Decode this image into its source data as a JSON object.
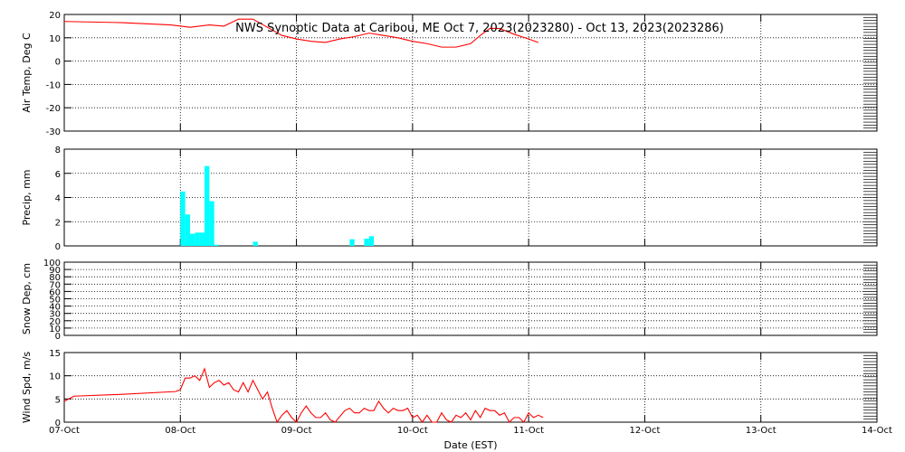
{
  "chart_data": {
    "title": "NWS Synoptic Data at Caribou, ME   Oct  7, 2023(2023280) - Oct 13, 2023(2023286)",
    "xlabel": "Date (EST)",
    "x_range": [
      "2023-10-07",
      "2023-10-14"
    ],
    "x_tick_labels": [
      "07-Oct",
      "08-Oct",
      "09-Oct",
      "10-Oct",
      "11-Oct",
      "12-Oct",
      "13-Oct",
      "14-Oct"
    ],
    "colors": {
      "line": "#ff0000",
      "bar": "#00ffff",
      "grid": "#000000"
    },
    "panels": [
      {
        "id": "air_temp",
        "type": "line",
        "ylabel": "Air Temp, Deg C",
        "ylim": [
          -30,
          20
        ],
        "yticks": [
          -30,
          -20,
          -10,
          0,
          10,
          20
        ],
        "grid": true,
        "points": [
          [
            "2023-10-07T00:00",
            17
          ],
          [
            "2023-10-07T12:00",
            16.5
          ],
          [
            "2023-10-07T22:00",
            15.5
          ],
          [
            "2023-10-08T02:00",
            14.5
          ],
          [
            "2023-10-08T06:00",
            15.5
          ],
          [
            "2023-10-08T09:00",
            15
          ],
          [
            "2023-10-08T12:00",
            18
          ],
          [
            "2023-10-08T15:00",
            18
          ],
          [
            "2023-10-08T18:00",
            14.5
          ],
          [
            "2023-10-08T21:00",
            11
          ],
          [
            "2023-10-09T00:00",
            9.5
          ],
          [
            "2023-10-09T03:00",
            8.5
          ],
          [
            "2023-10-09T06:00",
            8
          ],
          [
            "2023-10-09T09:00",
            9.5
          ],
          [
            "2023-10-09T12:00",
            10.5
          ],
          [
            "2023-10-09T15:00",
            12
          ],
          [
            "2023-10-09T18:00",
            11
          ],
          [
            "2023-10-09T21:00",
            10
          ],
          [
            "2023-10-10T00:00",
            8.5
          ],
          [
            "2023-10-10T03:00",
            7.5
          ],
          [
            "2023-10-10T06:00",
            6
          ],
          [
            "2023-10-10T09:00",
            6
          ],
          [
            "2023-10-10T12:00",
            7.5
          ],
          [
            "2023-10-10T14:00",
            11
          ],
          [
            "2023-10-10T16:00",
            14
          ],
          [
            "2023-10-10T18:00",
            14
          ],
          [
            "2023-10-10T21:00",
            11.5
          ],
          [
            "2023-10-11T00:00",
            9.5
          ],
          [
            "2023-10-11T02:00",
            8
          ]
        ]
      },
      {
        "id": "precip",
        "type": "bar",
        "ylabel": "Precip, mm",
        "ylim": [
          0,
          8
        ],
        "yticks": [
          0,
          2,
          4,
          6,
          8
        ],
        "grid": true,
        "bar_width_hours": 1,
        "bars": [
          [
            "2023-10-08T00:00",
            4.5
          ],
          [
            "2023-10-08T01:00",
            2.6
          ],
          [
            "2023-10-08T02:00",
            1.0
          ],
          [
            "2023-10-08T03:00",
            1.1
          ],
          [
            "2023-10-08T04:00",
            1.1
          ],
          [
            "2023-10-08T05:00",
            6.6
          ],
          [
            "2023-10-08T06:00",
            3.7
          ],
          [
            "2023-10-08T07:00",
            0.1
          ],
          [
            "2023-10-08T15:00",
            0.35
          ],
          [
            "2023-10-09T11:00",
            0.55
          ],
          [
            "2023-10-09T14:00",
            0.6
          ],
          [
            "2023-10-09T15:00",
            0.8
          ]
        ]
      },
      {
        "id": "snow_depth",
        "type": "line",
        "ylabel": "Snow Dep, cm",
        "ylim": [
          0,
          100
        ],
        "yticks": [
          0,
          10,
          20,
          30,
          40,
          50,
          60,
          70,
          80,
          90,
          100
        ],
        "grid": true,
        "points": []
      },
      {
        "id": "wind_speed",
        "type": "line",
        "ylabel": "Wind Spd, m/s",
        "ylim": [
          0,
          15
        ],
        "yticks": [
          0,
          5,
          10,
          15
        ],
        "grid": true,
        "points": [
          [
            "2023-10-07T00:00",
            4.5
          ],
          [
            "2023-10-07T02:00",
            5.6
          ],
          [
            "2023-10-07T12:00",
            6.0
          ],
          [
            "2023-10-07T23:00",
            6.6
          ],
          [
            "2023-10-08T00:00",
            7
          ],
          [
            "2023-10-08T01:00",
            9.5
          ],
          [
            "2023-10-08T02:00",
            9.5
          ],
          [
            "2023-10-08T03:00",
            10
          ],
          [
            "2023-10-08T04:00",
            9
          ],
          [
            "2023-10-08T05:00",
            11.5
          ],
          [
            "2023-10-08T06:00",
            7.5
          ],
          [
            "2023-10-08T07:00",
            8.5
          ],
          [
            "2023-10-08T08:00",
            9
          ],
          [
            "2023-10-08T09:00",
            8
          ],
          [
            "2023-10-08T10:00",
            8.5
          ],
          [
            "2023-10-08T11:00",
            7
          ],
          [
            "2023-10-08T12:00",
            6.5
          ],
          [
            "2023-10-08T13:00",
            8.5
          ],
          [
            "2023-10-08T14:00",
            6.5
          ],
          [
            "2023-10-08T15:00",
            9
          ],
          [
            "2023-10-08T16:00",
            7
          ],
          [
            "2023-10-08T17:00",
            5
          ],
          [
            "2023-10-08T18:00",
            6.5
          ],
          [
            "2023-10-08T19:00",
            3
          ],
          [
            "2023-10-08T20:00",
            0
          ],
          [
            "2023-10-08T21:00",
            1.5
          ],
          [
            "2023-10-08T22:00",
            2.5
          ],
          [
            "2023-10-08T23:00",
            1
          ],
          [
            "2023-10-09T00:00",
            0
          ],
          [
            "2023-10-09T01:00",
            2
          ],
          [
            "2023-10-09T02:00",
            3.5
          ],
          [
            "2023-10-09T03:00",
            2
          ],
          [
            "2023-10-09T04:00",
            1
          ],
          [
            "2023-10-09T05:00",
            1
          ],
          [
            "2023-10-09T06:00",
            2
          ],
          [
            "2023-10-09T07:00",
            0.5
          ],
          [
            "2023-10-09T08:00",
            0
          ],
          [
            "2023-10-09T10:00",
            2.5
          ],
          [
            "2023-10-09T11:00",
            3
          ],
          [
            "2023-10-09T12:00",
            2
          ],
          [
            "2023-10-09T13:00",
            2
          ],
          [
            "2023-10-09T14:00",
            3
          ],
          [
            "2023-10-09T15:00",
            2.5
          ],
          [
            "2023-10-09T16:00",
            2.5
          ],
          [
            "2023-10-09T17:00",
            4.5
          ],
          [
            "2023-10-09T18:00",
            3
          ],
          [
            "2023-10-09T19:00",
            2
          ],
          [
            "2023-10-09T20:00",
            3
          ],
          [
            "2023-10-09T21:00",
            2.5
          ],
          [
            "2023-10-09T22:00",
            2.5
          ],
          [
            "2023-10-09T23:00",
            3
          ],
          [
            "2023-10-10T00:00",
            1
          ],
          [
            "2023-10-10T01:00",
            1.5
          ],
          [
            "2023-10-10T02:00",
            0
          ],
          [
            "2023-10-10T03:00",
            1.5
          ],
          [
            "2023-10-10T04:00",
            0
          ],
          [
            "2023-10-10T05:00",
            0
          ],
          [
            "2023-10-10T06:00",
            2
          ],
          [
            "2023-10-10T07:00",
            0.5
          ],
          [
            "2023-10-10T08:00",
            0
          ],
          [
            "2023-10-10T09:00",
            1.5
          ],
          [
            "2023-10-10T10:00",
            1
          ],
          [
            "2023-10-10T11:00",
            2
          ],
          [
            "2023-10-10T12:00",
            0.5
          ],
          [
            "2023-10-10T13:00",
            2.5
          ],
          [
            "2023-10-10T14:00",
            1
          ],
          [
            "2023-10-10T15:00",
            3
          ],
          [
            "2023-10-10T16:00",
            2.5
          ],
          [
            "2023-10-10T17:00",
            2.5
          ],
          [
            "2023-10-10T18:00",
            1.5
          ],
          [
            "2023-10-10T19:00",
            2
          ],
          [
            "2023-10-10T20:00",
            0
          ],
          [
            "2023-10-10T21:00",
            1
          ],
          [
            "2023-10-10T22:00",
            1
          ],
          [
            "2023-10-10T23:00",
            0
          ],
          [
            "2023-10-11T00:00",
            2
          ],
          [
            "2023-10-11T01:00",
            1
          ],
          [
            "2023-10-11T02:00",
            1.5
          ],
          [
            "2023-10-11T03:00",
            1
          ]
        ]
      }
    ]
  }
}
